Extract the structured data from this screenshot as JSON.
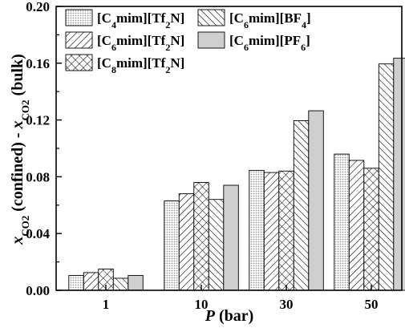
{
  "chart_data": {
    "type": "bar",
    "categories": [
      "1",
      "10",
      "30",
      "50"
    ],
    "series": [
      {
        "name": "[C4mim][Tf2N]",
        "pattern": "dots",
        "values": [
          0.0105,
          0.063,
          0.0845,
          0.096
        ]
      },
      {
        "name": "[C6mim][Tf2N]",
        "pattern": "hatch-forward",
        "values": [
          0.0125,
          0.068,
          0.083,
          0.0915
        ]
      },
      {
        "name": "[C8mim][Tf2N]",
        "pattern": "crosshatch",
        "values": [
          0.015,
          0.076,
          0.084,
          0.086
        ]
      },
      {
        "name": "[C6mim][BF4]",
        "pattern": "hatch-backward",
        "values": [
          0.0085,
          0.064,
          0.1195,
          0.1595
        ]
      },
      {
        "name": "[C6mim][PF6]",
        "pattern": "gray",
        "values": [
          0.0105,
          0.074,
          0.1265,
          0.1635
        ]
      }
    ],
    "xlabel": "P (bar)",
    "ylabel": "x_CO2 (confined) - x_CO2 (bulk)",
    "ylim": [
      0,
      0.2
    ],
    "yticks": [
      "0.00",
      "0.04",
      "0.08",
      "0.12",
      "0.16",
      "0.20"
    ],
    "legend_placement": "top-left, two columns",
    "grid": false,
    "colors": {
      "axis": "#000000",
      "bar_edge": "#000000",
      "dots": "#9a9a9a",
      "gray_fill": "#cfcfcf"
    }
  },
  "legend": {
    "entries": [
      {
        "base": "[C",
        "sub": "4",
        "mid": "mim][Tf",
        "sub2": "2",
        "end": "N]"
      },
      {
        "base": "[C",
        "sub": "6",
        "mid": "mim][Tf",
        "sub2": "2",
        "end": "N]"
      },
      {
        "base": "[C",
        "sub": "8",
        "mid": "mim][Tf",
        "sub2": "2",
        "end": "N]"
      },
      {
        "base": "[C",
        "sub": "6",
        "mid": "mim][BF",
        "sub2": "4",
        "end": "]"
      },
      {
        "base": "[C",
        "sub": "6",
        "mid": "mim][PF",
        "sub2": "6",
        "end": "]"
      }
    ]
  },
  "axes": {
    "x_title": {
      "italic": "P",
      "rest": " (bar)"
    },
    "y_title": {
      "x": "x",
      "sub": "CO2",
      "middle": " (confined) - ",
      "x2": "x",
      "sub2": "CO2",
      "end": " (bulk)"
    }
  }
}
